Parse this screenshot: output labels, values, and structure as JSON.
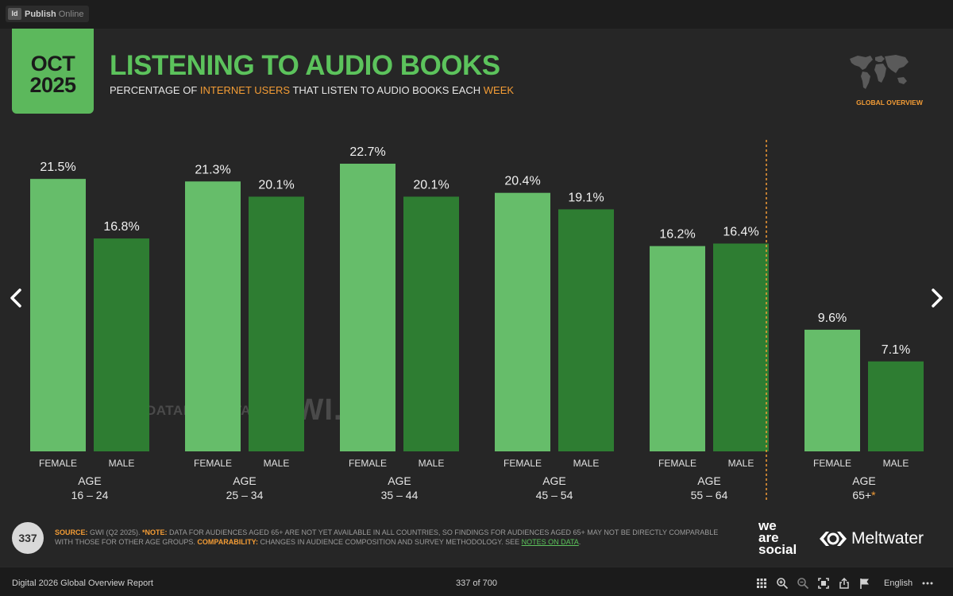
{
  "app": {
    "badge": "Id",
    "name": "Publish",
    "suffix": "Online"
  },
  "slide": {
    "date_month": "OCT",
    "date_year": "2025",
    "title": "LISTENING TO AUDIO BOOKS",
    "subtitle_parts": [
      "PERCENTAGE OF ",
      "INTERNET USERS",
      " THAT LISTEN TO AUDIO BOOKS EACH ",
      "WEEK"
    ],
    "badge": "GLOBAL OVERVIEW",
    "watermark_datareportal": "DATAREPORTAL",
    "watermark_gwi": "GWI.",
    "page_number": "337",
    "source": {
      "source_key": "SOURCE:",
      "source_text": " GWI (Q2 2025). ",
      "note_key": "*NOTE:",
      "note_text": " DATA FOR AUDIENCES AGED 65+ ARE NOT YET AVAILABLE IN ALL COUNTRIES, SO FINDINGS FOR AUDIENCES AGED 65+ MAY NOT BE DIRECTLY COMPARABLE WITH THOSE FOR OTHER AGE GROUPS. ",
      "comp_key": "COMPARABILITY:",
      "comp_text": " CHANGES IN AUDIENCE COMPOSITION AND SURVEY METHODOLOGY. SEE ",
      "link_text": "NOTES ON DATA",
      "end": "."
    },
    "partner_1": [
      "we",
      "are",
      "social"
    ],
    "partner_2": "Meltwater"
  },
  "chart_data": {
    "type": "bar",
    "title": "LISTENING TO AUDIO BOOKS",
    "subtitle": "PERCENTAGE OF INTERNET USERS THAT LISTEN TO AUDIO BOOKS EACH WEEK",
    "age_prefix": "AGE",
    "groups": [
      {
        "age": "16 – 24",
        "star": ""
      },
      {
        "age": "25 – 34",
        "star": ""
      },
      {
        "age": "35 – 44",
        "star": ""
      },
      {
        "age": "45 – 54",
        "star": ""
      },
      {
        "age": "55 – 64",
        "star": ""
      },
      {
        "age": "65+",
        "star": "*"
      }
    ],
    "series": [
      {
        "name": "FEMALE",
        "color": "#66bd6a",
        "values": [
          21.5,
          21.3,
          22.7,
          20.4,
          16.2,
          9.6
        ],
        "labels": [
          "21.5%",
          "21.3%",
          "22.7%",
          "20.4%",
          "16.2%",
          "9.6%"
        ]
      },
      {
        "name": "MALE",
        "color": "#2e7d32",
        "values": [
          16.8,
          20.1,
          20.1,
          19.1,
          16.4,
          7.1
        ],
        "labels": [
          "16.8%",
          "20.1%",
          "20.1%",
          "19.1%",
          "16.4%",
          "7.1%"
        ]
      }
    ],
    "ylim": [
      0,
      22.7
    ],
    "separator_before_group": 5,
    "separator_color": "#f39c35"
  },
  "toolbar": {
    "report_name": "Digital 2026 Global Overview Report",
    "page_counter": "337 of 700",
    "language": "English"
  }
}
